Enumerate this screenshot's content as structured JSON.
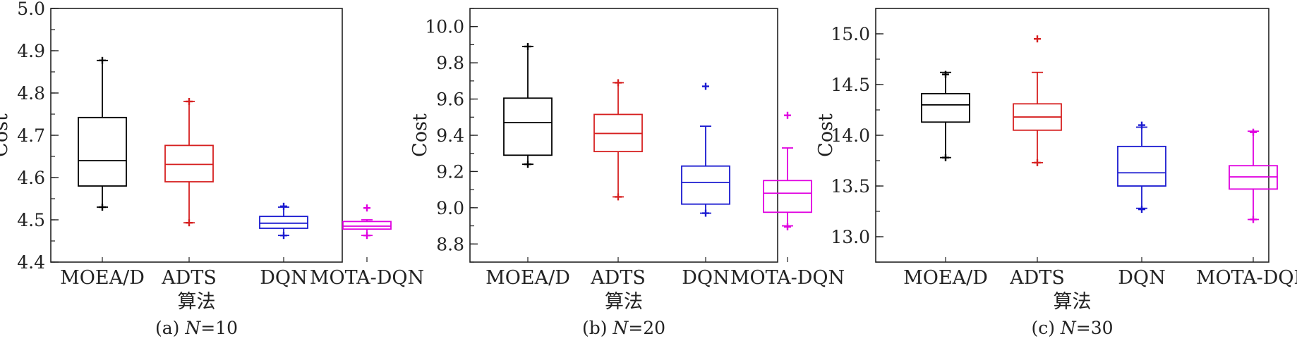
{
  "chart_data": [
    {
      "type": "box",
      "caption": "(a) N=10",
      "caption_prefix": "(a) ",
      "caption_var": "N",
      "caption_suffix": "=10",
      "xlabel": "算法",
      "ylabel": "Cost",
      "ylim": [
        4.4,
        5.0
      ],
      "yticks": [
        4.4,
        4.5,
        4.6,
        4.7,
        4.8,
        4.9,
        5.0
      ],
      "ytick_labels": [
        "4.4",
        "4.5",
        "4.6",
        "4.7",
        "4.8",
        "4.9",
        "5.0"
      ],
      "minor_step": 0.05,
      "categories": [
        "MOEA/D",
        "ADTS",
        "DQN",
        "MOTA-DQN"
      ],
      "boxes": [
        {
          "whisker_low": 4.53,
          "q1": 4.58,
          "median": 4.64,
          "q3": 4.742,
          "whisker_high": 4.877,
          "outliers": [
            4.877,
            4.53
          ]
        },
        {
          "whisker_low": 4.493,
          "q1": 4.59,
          "median": 4.631,
          "q3": 4.676,
          "whisker_high": 4.78,
          "outliers": [
            4.78,
            4.493
          ]
        },
        {
          "whisker_low": 4.463,
          "q1": 4.48,
          "median": 4.492,
          "q3": 4.508,
          "whisker_high": 4.53,
          "outliers": [
            4.532,
            4.463
          ]
        },
        {
          "whisker_low": 4.463,
          "q1": 4.478,
          "median": 4.485,
          "q3": 4.496,
          "whisker_high": 4.5,
          "outliers": [
            4.528,
            4.463
          ]
        }
      ]
    },
    {
      "type": "box",
      "caption": "(b) N=20",
      "caption_prefix": "(b) ",
      "caption_var": "N",
      "caption_suffix": "=20",
      "xlabel": "算法",
      "ylabel": "Cost",
      "ylim": [
        8.7,
        10.1
      ],
      "yticks": [
        8.8,
        9.0,
        9.2,
        9.4,
        9.6,
        9.8,
        10.0
      ],
      "ytick_labels": [
        "8.8",
        "9.0",
        "9.2",
        "9.4",
        "9.6",
        "9.8",
        "10.0"
      ],
      "minor_step": 0.1,
      "categories": [
        "MOEA/D",
        "ADTS",
        "DQN",
        "MOTA-DQN"
      ],
      "boxes": [
        {
          "whisker_low": 9.24,
          "q1": 9.29,
          "median": 9.47,
          "q3": 9.605,
          "whisker_high": 9.89,
          "outliers": [
            9.89,
            9.24
          ]
        },
        {
          "whisker_low": 9.06,
          "q1": 9.31,
          "median": 9.41,
          "q3": 9.515,
          "whisker_high": 9.69,
          "outliers": [
            9.69,
            9.06
          ]
        },
        {
          "whisker_low": 8.97,
          "q1": 9.02,
          "median": 9.14,
          "q3": 9.23,
          "whisker_high": 9.45,
          "outliers": [
            9.67,
            8.97
          ]
        },
        {
          "whisker_low": 8.9,
          "q1": 8.975,
          "median": 9.08,
          "q3": 9.15,
          "whisker_high": 9.33,
          "outliers": [
            9.51,
            8.895
          ]
        }
      ]
    },
    {
      "type": "box",
      "caption": "(c) N=30",
      "caption_prefix": "(c) ",
      "caption_var": "N",
      "caption_suffix": "=30",
      "xlabel": "算法",
      "ylabel": "Cost",
      "ylim": [
        12.75,
        15.25
      ],
      "yticks": [
        13.0,
        13.5,
        14.0,
        14.5,
        15.0
      ],
      "ytick_labels": [
        "13.0",
        "13.5",
        "14.0",
        "14.5",
        "15.0"
      ],
      "minor_step": 0.25,
      "categories": [
        "MOEA/D",
        "ADTS",
        "DQN",
        "MOTA-DQN"
      ],
      "boxes": [
        {
          "whisker_low": 13.78,
          "q1": 14.13,
          "median": 14.3,
          "q3": 14.41,
          "whisker_high": 14.62,
          "outliers": [
            14.6,
            13.78
          ]
        },
        {
          "whisker_low": 13.73,
          "q1": 14.05,
          "median": 14.18,
          "q3": 14.31,
          "whisker_high": 14.62,
          "outliers": [
            14.95,
            13.73
          ]
        },
        {
          "whisker_low": 13.28,
          "q1": 13.5,
          "median": 13.63,
          "q3": 13.89,
          "whisker_high": 14.08,
          "outliers": [
            14.1,
            13.27
          ]
        },
        {
          "whisker_low": 13.17,
          "q1": 13.47,
          "median": 13.59,
          "q3": 13.7,
          "whisker_high": 14.04,
          "outliers": [
            14.03,
            13.17
          ]
        }
      ]
    }
  ],
  "series_colors": [
    "#000000",
    "#d62020",
    "#1a1ad0",
    "#e000e0"
  ]
}
